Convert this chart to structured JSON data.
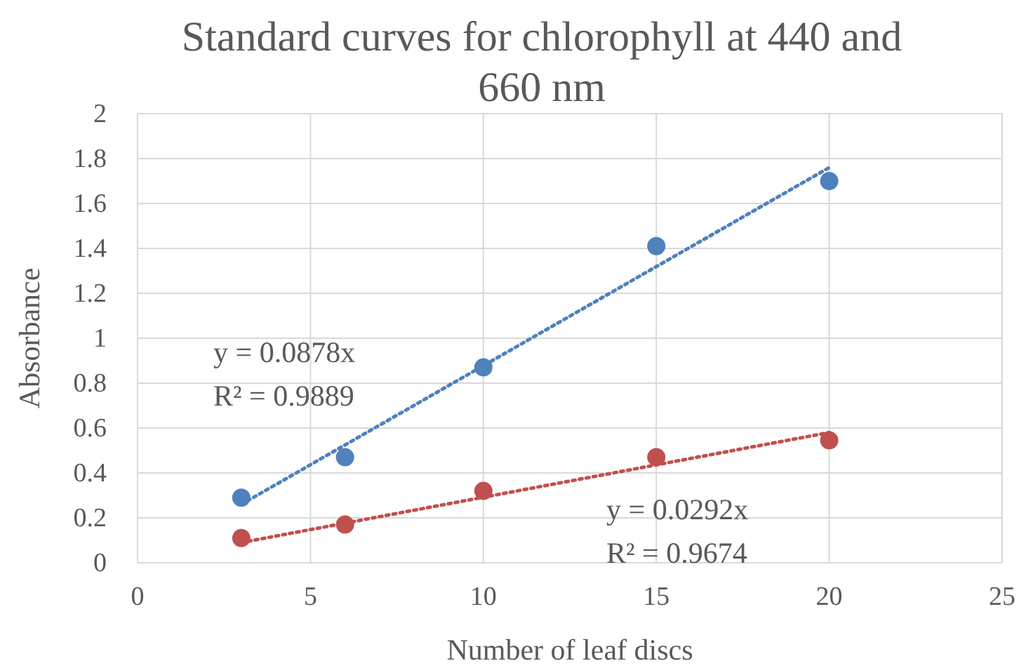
{
  "chart_data": {
    "type": "scatter",
    "title": "Standard curves for chlorophyll at 440 and 660 nm",
    "xlabel": "Number of leaf discs",
    "ylabel": "Absorbance",
    "series": [
      {
        "color": "#4f81bd",
        "x": [
          3,
          6,
          10,
          15,
          20
        ],
        "values": [
          0.29,
          0.47,
          0.87,
          1.41,
          1.7
        ]
      },
      {
        "color": "#c0504d",
        "x": [
          3,
          6,
          10,
          15,
          20
        ],
        "values": [
          0.11,
          0.17,
          0.32,
          0.47,
          0.545
        ]
      },
      {
        "type": "line",
        "color": "#4f81bd",
        "x": [
          3,
          20
        ],
        "values": [
          0.26,
          1.76
        ],
        "line_style": "dotted",
        "marker": "none"
      },
      {
        "type": "line",
        "color": "#c0504d",
        "x": [
          3,
          20
        ],
        "values": [
          0.09,
          0.58
        ],
        "line_style": "dotted",
        "marker": "none"
      }
    ],
    "annotations": [
      "y = 0.0878x",
      "R² = 0.9889",
      "y = 0.0292x",
      "R² = 0.9674"
    ],
    "xlim": [
      0,
      25
    ],
    "xticks": [
      0,
      5,
      10,
      15,
      20,
      25
    ],
    "ylim": [
      0,
      2
    ],
    "yticks": [
      0,
      0.2,
      0.4,
      0.6,
      0.8,
      1,
      1.2,
      1.4,
      1.6,
      1.8,
      2
    ],
    "grid": true,
    "marker": "circle"
  }
}
